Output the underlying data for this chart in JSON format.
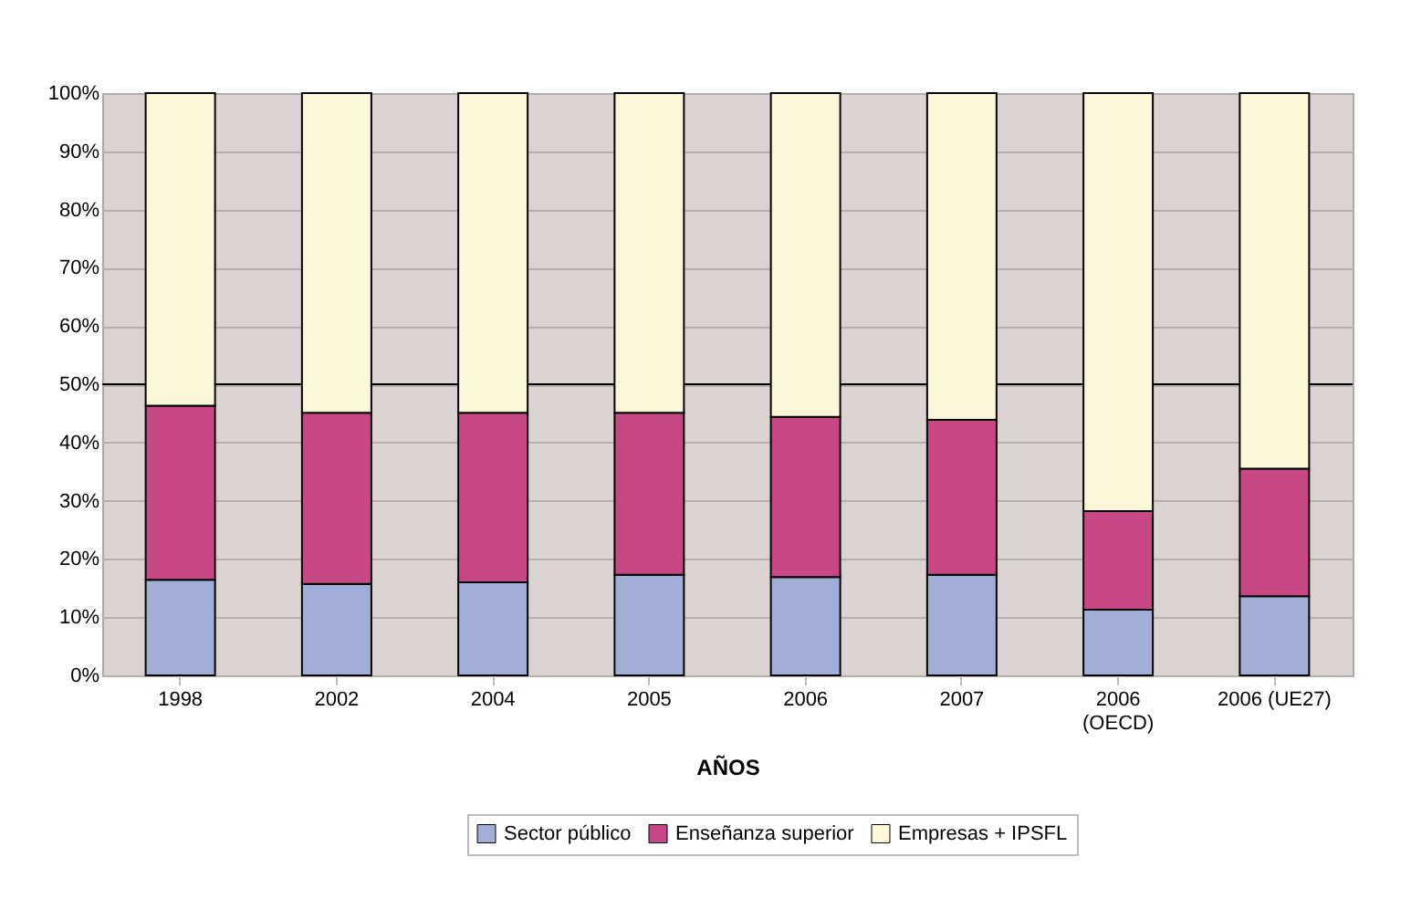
{
  "chart_data": {
    "type": "bar",
    "stacked": true,
    "xlabel": "AÑOS",
    "categories": [
      "1998",
      "2002",
      "2004",
      "2005",
      "2006",
      "2007",
      "2006\n(OECD)",
      "2006 (UE27)"
    ],
    "series": [
      {
        "name": "Sector público",
        "color": "#a1aed6",
        "values": [
          16.4,
          15.7,
          16.0,
          17.3,
          16.9,
          17.3,
          11.3,
          13.6
        ]
      },
      {
        "name": "Enseñanza superior",
        "color": "#c84885",
        "values": [
          29.9,
          29.4,
          29.1,
          27.8,
          27.5,
          26.6,
          16.9,
          21.9
        ]
      },
      {
        "name": "Empresas + IPSFL",
        "color": "#faf6d8",
        "values": [
          53.7,
          54.9,
          54.9,
          54.9,
          55.6,
          56.1,
          71.8,
          64.5
        ]
      }
    ],
    "ylim": [
      0,
      100
    ],
    "yticks": [
      {
        "value": 0,
        "label": "0%"
      },
      {
        "value": 10,
        "label": "10%"
      },
      {
        "value": 20,
        "label": "20%"
      },
      {
        "value": 30,
        "label": "30%"
      },
      {
        "value": 40,
        "label": "40%"
      },
      {
        "value": 50,
        "label": "50%"
      },
      {
        "value": 60,
        "label": "60%"
      },
      {
        "value": 70,
        "label": "70%"
      },
      {
        "value": 80,
        "label": "80%"
      },
      {
        "value": 90,
        "label": "90%"
      },
      {
        "value": 100,
        "label": "100%"
      }
    ],
    "ref_lines": [
      {
        "axis": "y",
        "value": 50,
        "color": "#000000"
      }
    ],
    "grid": "y",
    "legend": "bottom"
  }
}
